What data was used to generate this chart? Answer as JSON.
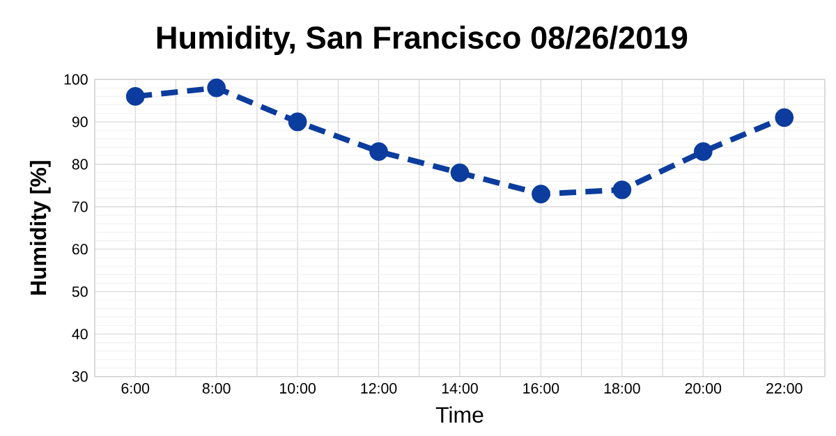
{
  "chart_data": {
    "type": "line",
    "title": "Humidity, San Francisco 08/26/2019",
    "xlabel": "Time",
    "ylabel": "Humidity [%]",
    "categories": [
      "6:00",
      "8:00",
      "10:00",
      "12:00",
      "14:00",
      "16:00",
      "18:00",
      "20:00",
      "22:00"
    ],
    "series": [
      {
        "color": "#0b3c9e",
        "values": [
          96,
          98,
          90,
          83,
          78,
          73,
          74,
          83,
          91
        ]
      }
    ],
    "ylim": [
      30,
      100
    ],
    "yticks": [
      30,
      40,
      50,
      60,
      70,
      80,
      90,
      100
    ],
    "grid": true,
    "marker": "circle",
    "line_style": "dashed"
  }
}
